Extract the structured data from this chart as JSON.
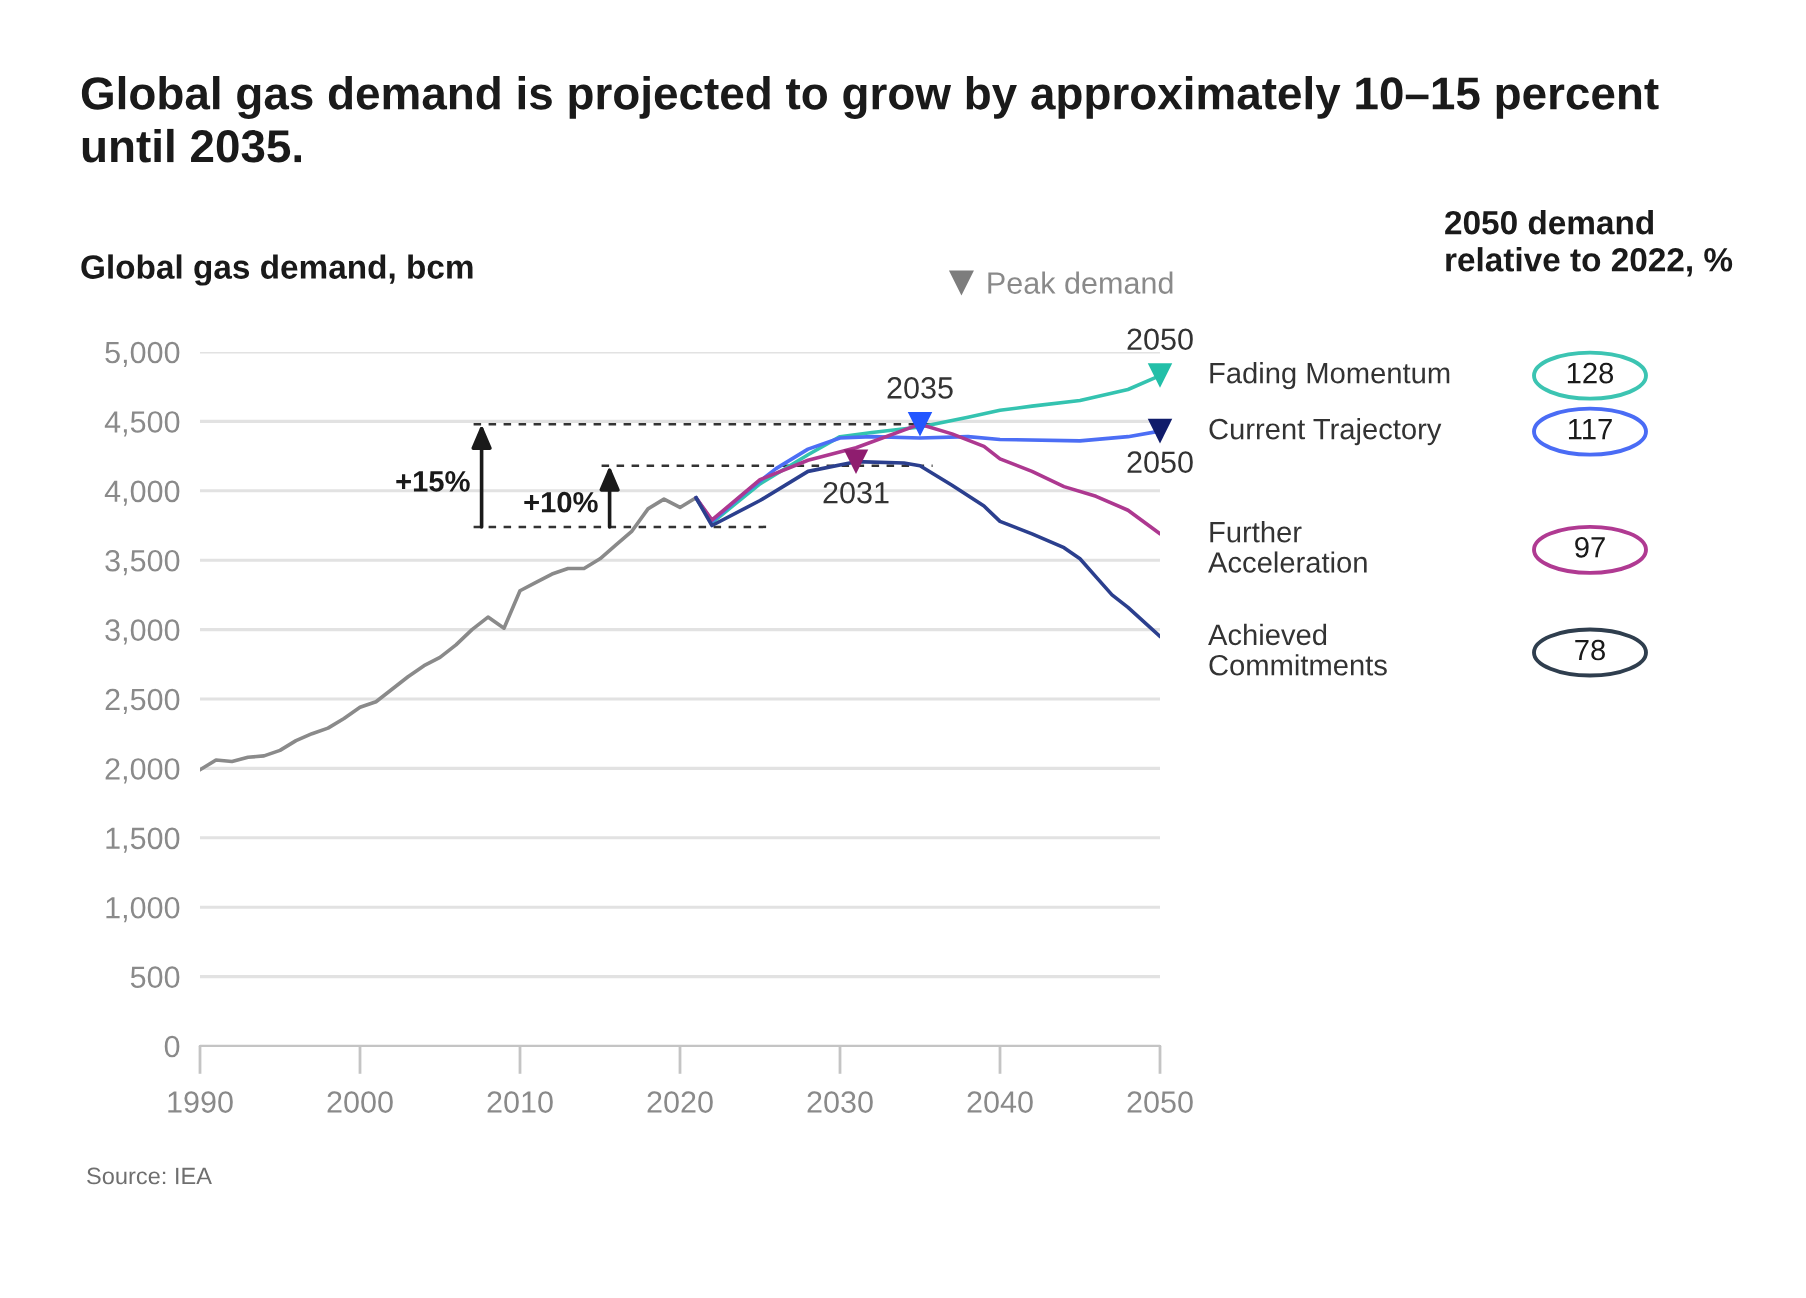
{
  "chart_data": [
    {
      "type": "line",
      "title": "Global gas demand is projected to grow by approximately 10–15 percent until 2035.",
      "ylabel": "Global gas demand, bcm",
      "xlim": [
        1990,
        2050
      ],
      "xticks": [
        1990,
        2000,
        2010,
        2020,
        2030,
        2040,
        2050
      ],
      "ylim": [
        0,
        5000
      ],
      "yticks": [
        0,
        500,
        {
          "value": 1000,
          "label": "1,000"
        },
        {
          "value": 1500,
          "label": "1,500"
        },
        {
          "value": 2000,
          "label": "2,000"
        },
        {
          "value": 2500,
          "label": "2,500"
        },
        {
          "value": 3000,
          "label": "3,000"
        },
        {
          "value": 3500,
          "label": "3,500"
        },
        {
          "value": 4000,
          "label": "4,000"
        },
        {
          "value": 4500,
          "label": "4,500"
        },
        {
          "value": 5000,
          "label": "5,000"
        }
      ],
      "grid": "y",
      "legend": "top right",
      "series": [
        {
          "color": "#8a8a8a",
          "x": [
            1990,
            1991,
            1992,
            1993,
            1994,
            1995,
            1996,
            1997,
            1998,
            1999,
            2000,
            2001,
            2002,
            2003,
            2004,
            2005,
            2006,
            2007,
            2008,
            2009,
            2010,
            2011,
            2012,
            2013,
            2014,
            2015,
            2016,
            2017,
            2018,
            2019,
            2020,
            2021
          ],
          "values": [
            1990,
            2060,
            2050,
            2080,
            2090,
            2130,
            2200,
            2250,
            2290,
            2360,
            2440,
            2480,
            2570,
            2660,
            2740,
            2800,
            2890,
            3000,
            3090,
            3010,
            3280,
            3340,
            3400,
            3440,
            3440,
            3510,
            3610,
            3710,
            3870,
            3940,
            3880,
            3950
          ]
        },
        {
          "color": "#34c3b0",
          "x": [
            2021,
            2022,
            2025,
            2028,
            2030,
            2032,
            2035,
            2038,
            2040,
            2042,
            2045,
            2048,
            2050
          ],
          "values": [
            3950,
            3770,
            4050,
            4260,
            4390,
            4420,
            4460,
            4530,
            4580,
            4610,
            4650,
            4730,
            4830
          ]
        },
        {
          "color": "#4c6ef5",
          "x": [
            2021,
            2022,
            2024,
            2026,
            2028,
            2030,
            2032,
            2035,
            2038,
            2040,
            2045,
            2048,
            2050
          ],
          "values": [
            3950,
            3780,
            3980,
            4160,
            4300,
            4380,
            4390,
            4380,
            4390,
            4370,
            4360,
            4390,
            4430
          ]
        },
        {
          "color": "#ad3890",
          "x": [
            2021,
            2022,
            2025,
            2028,
            2031,
            2035,
            2037,
            2039,
            2040,
            2042,
            2044,
            2046,
            2048,
            2050
          ],
          "values": [
            3950,
            3790,
            4080,
            4220,
            4310,
            4480,
            4410,
            4320,
            4230,
            4140,
            4030,
            3960,
            3860,
            3690
          ]
        },
        {
          "color": "#2b3f8e",
          "x": [
            2021,
            2022,
            2025,
            2028,
            2031,
            2034,
            2035,
            2037,
            2039,
            2040,
            2042,
            2044,
            2045,
            2046,
            2047,
            2048,
            2050
          ],
          "values": [
            3950,
            3750,
            3930,
            4140,
            4210,
            4200,
            4180,
            4040,
            3890,
            3780,
            3690,
            3590,
            3510,
            3380,
            3250,
            3160,
            2950
          ]
        },
        {
          "name": "Peak demand",
          "type": "scatter",
          "marker": "triangle",
          "color": "#7d7d7d",
          "colors": [
            "#22bfa8",
            "#2357ff",
            "#8f1d6f",
            "#101c6b"
          ],
          "x": [
            2050,
            2035,
            2031,
            2050
          ],
          "values": [
            4830,
            4480,
            4210,
            4430
          ]
        }
      ],
      "ref_lines": [
        {
          "axis": "y",
          "value": 3740,
          "color": "#333333",
          "line_style": "dashed"
        },
        {
          "axis": "y",
          "value": 4480,
          "color": "#333333",
          "line_style": "dashed"
        },
        {
          "axis": "y",
          "value": 4180,
          "color": "#333333",
          "line_style": "dashed"
        }
      ],
      "annotations": [
        {
          "text": "+15%",
          "x": 2007.6,
          "y": 4480
        },
        {
          "text": "+10%",
          "x": 2015.6,
          "y": 4180
        },
        {
          "text": "2050",
          "x": 2050,
          "y": 4830
        },
        {
          "text": "2035",
          "x": 2035,
          "y": 4480
        },
        {
          "text": "2031",
          "x": 2031,
          "y": 4210
        },
        {
          "text": "2050",
          "x": 2050,
          "y": 4430
        },
        "Source: IEA"
      ]
    },
    {
      "type": "other",
      "title": "2050 demand relative to 2022, %",
      "categories": [
        "Fading Momentum",
        "Current Trajectory",
        "Further Acceleration",
        "Achieved Commitments"
      ],
      "values": [
        128,
        117,
        97,
        78
      ],
      "colors": [
        "#3cc4b2",
        "#4a6cf5",
        "#b03a92",
        "#2f3e4e"
      ],
      "data_labels": true
    }
  ]
}
